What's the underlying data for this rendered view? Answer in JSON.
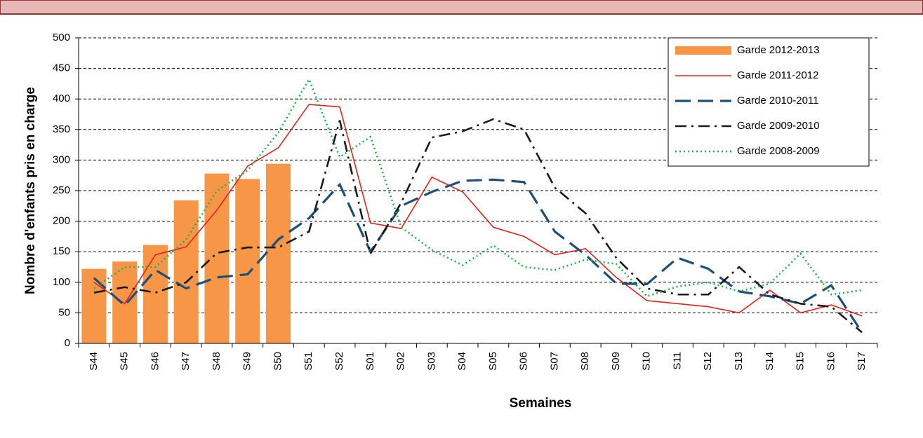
{
  "chart_data": {
    "type": "bar",
    "x_label": "Semaines",
    "y_label": "Nombre d'enfants  pris en charge",
    "categories": [
      "S44",
      "S45",
      "S46",
      "S47",
      "S48",
      "S49",
      "S50",
      "S51",
      "S52",
      "S01",
      "S02",
      "S03",
      "S04",
      "S05",
      "S06",
      "S07",
      "S08",
      "S09",
      "S10",
      "S11",
      "S12",
      "S13",
      "S14",
      "S15",
      "S16",
      "S17"
    ],
    "ylim": [
      0,
      500
    ],
    "yticks": [
      0,
      50,
      100,
      150,
      200,
      250,
      300,
      350,
      400,
      450,
      500
    ],
    "grid": true,
    "legend": "top-right",
    "series": [
      {
        "name": "Garde 2012-2013",
        "type": "bar",
        "color": "#f79646",
        "values": [
          122,
          134,
          161,
          234,
          278,
          269,
          294,
          null,
          null,
          null,
          null,
          null,
          null,
          null,
          null,
          null,
          null,
          null,
          null,
          null,
          null,
          null,
          null,
          null,
          null,
          null
        ]
      },
      {
        "name": "Garde 2011-2012",
        "type": "line",
        "style": "solid",
        "color": "#e8201c",
        "values": [
          100,
          65,
          145,
          158,
          218,
          290,
          320,
          391,
          387,
          197,
          188,
          272,
          248,
          190,
          175,
          145,
          155,
          108,
          70,
          65,
          60,
          50,
          87,
          50,
          63,
          45
        ]
      },
      {
        "name": "Garde 2010-2011",
        "type": "line",
        "style": "dashed",
        "color": "#1f4e79",
        "values": [
          107,
          62,
          120,
          90,
          108,
          113,
          170,
          205,
          260,
          150,
          225,
          248,
          266,
          268,
          264,
          183,
          145,
          98,
          97,
          140,
          122,
          85,
          77,
          65,
          95,
          18
        ]
      },
      {
        "name": "Garde 2009-2010",
        "type": "line",
        "style": "dashdot",
        "color": "#1a1a1a",
        "values": [
          83,
          92,
          83,
          100,
          148,
          157,
          157,
          183,
          365,
          147,
          230,
          337,
          347,
          367,
          350,
          255,
          213,
          140,
          90,
          80,
          80,
          125,
          80,
          65,
          60,
          18
        ]
      },
      {
        "name": "Garde 2008-2009",
        "type": "line",
        "style": "dotted",
        "color": "#1fb34a",
        "values": [
          90,
          125,
          125,
          170,
          250,
          283,
          345,
          432,
          305,
          338,
          190,
          153,
          128,
          160,
          125,
          120,
          137,
          130,
          77,
          93,
          100,
          85,
          98,
          147,
          80,
          87
        ]
      }
    ]
  }
}
